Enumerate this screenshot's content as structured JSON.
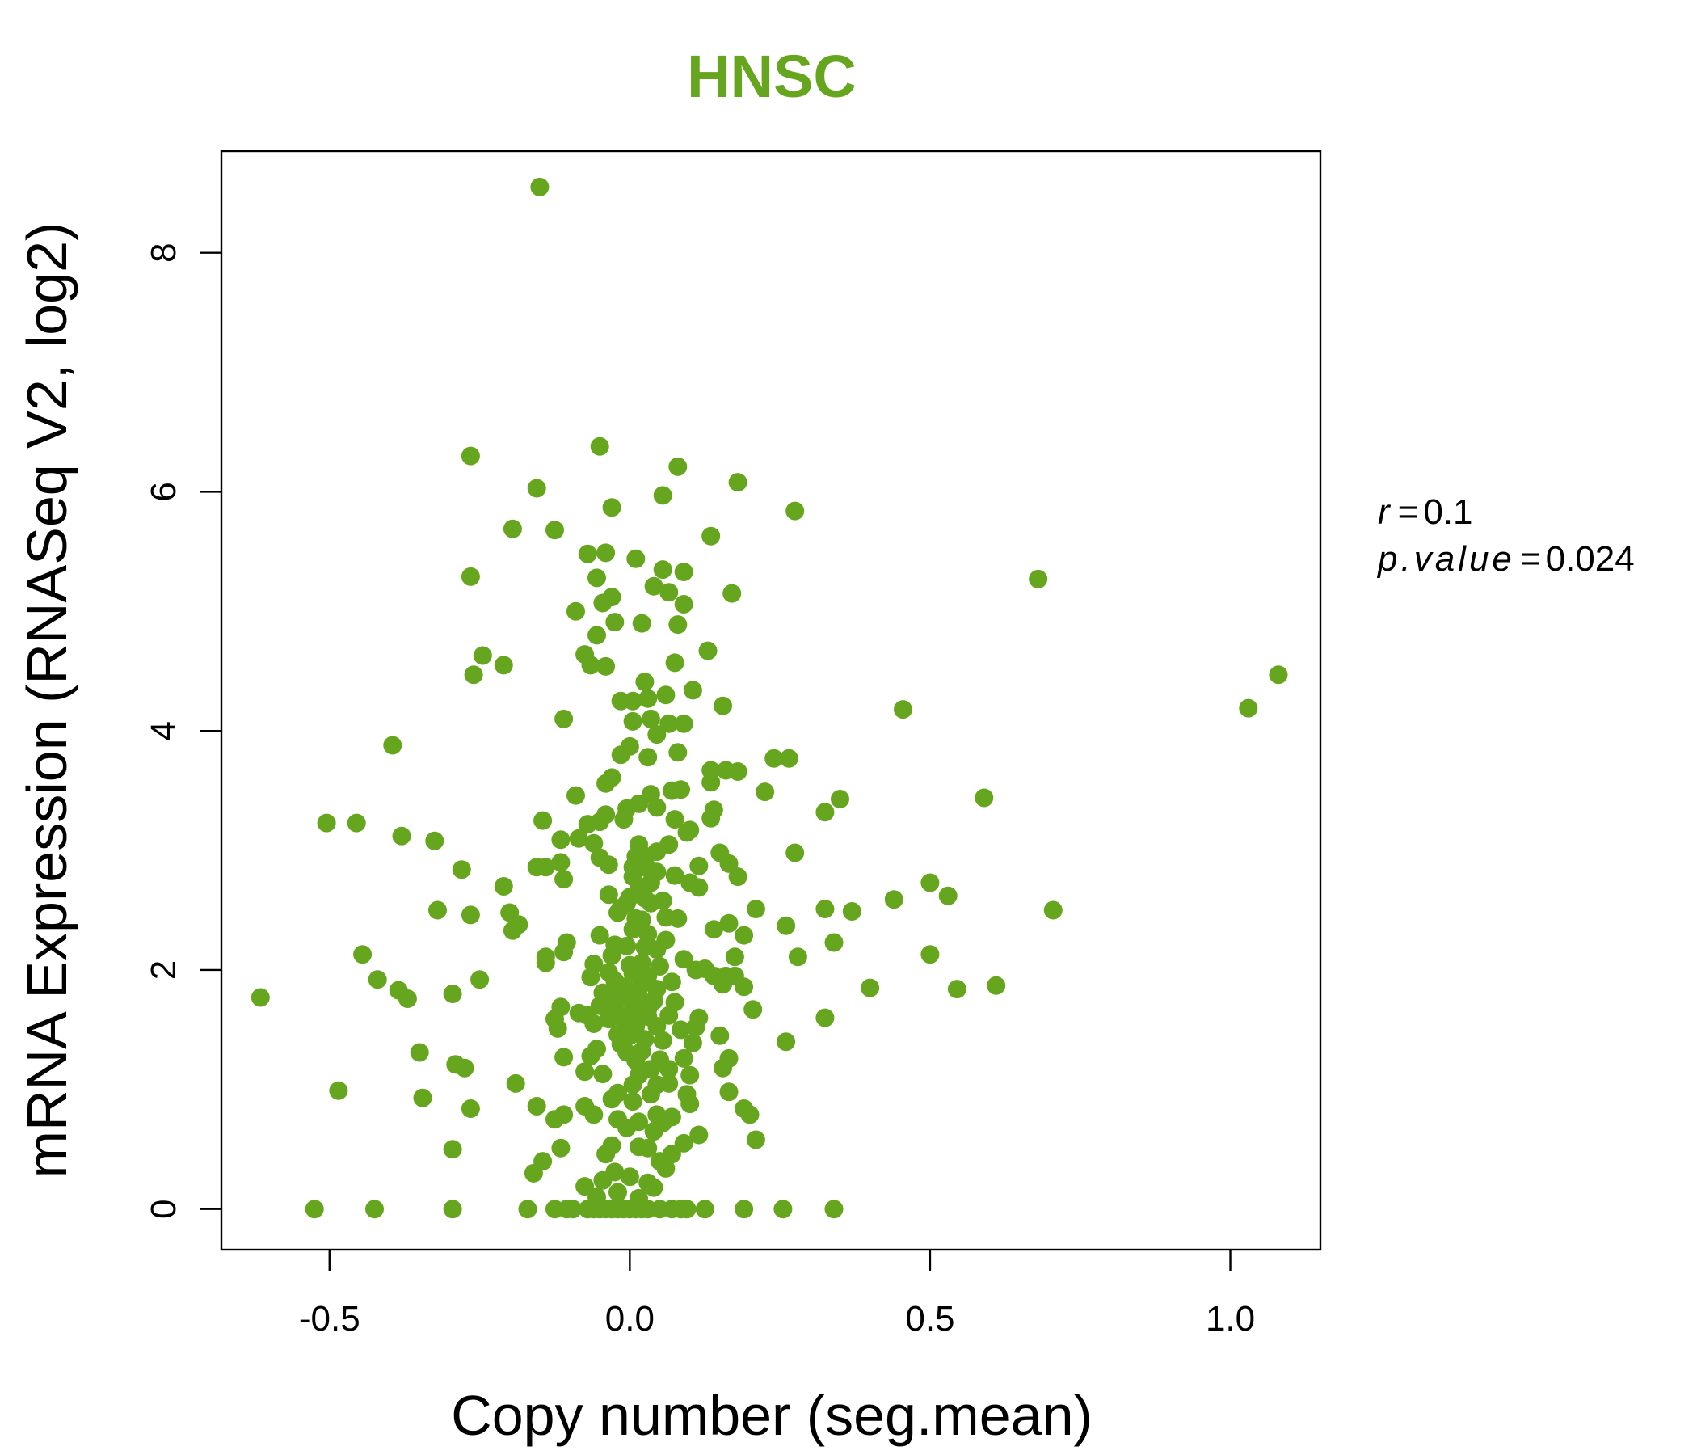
{
  "chart_data": {
    "type": "scatter",
    "title": "HNSC",
    "xlabel": "Copy number (seg.mean)",
    "ylabel": "mRNA Expression (RNASeq V2, log2)",
    "xlim": [
      -0.68,
      1.15
    ],
    "ylim": [
      -0.34,
      8.85
    ],
    "x_ticks": [
      -0.5,
      0.0,
      0.5,
      1.0
    ],
    "x_tick_labels": [
      "-0.5",
      "0.0",
      "0.5",
      "1.0"
    ],
    "y_ticks": [
      0,
      2,
      4,
      6,
      8
    ],
    "y_tick_labels": [
      "0",
      "2",
      "4",
      "6",
      "8"
    ],
    "grid": false,
    "color": "#66A61E",
    "annotation": {
      "r_label": "r",
      "r_value": "0.1",
      "p_label": "p.value",
      "p_value": "0.024"
    },
    "points": [
      {
        "x": -0.15,
        "y": 8.55
      },
      {
        "x": -0.265,
        "y": 6.3
      },
      {
        "x": -0.155,
        "y": 6.03
      },
      {
        "x": -0.05,
        "y": 6.38
      },
      {
        "x": -0.03,
        "y": 5.87
      },
      {
        "x": 0.08,
        "y": 6.21
      },
      {
        "x": 0.055,
        "y": 5.97
      },
      {
        "x": 0.18,
        "y": 6.08
      },
      {
        "x": 0.275,
        "y": 5.84
      },
      {
        "x": -0.195,
        "y": 5.69
      },
      {
        "x": -0.125,
        "y": 5.68
      },
      {
        "x": 0.135,
        "y": 5.63
      },
      {
        "x": -0.265,
        "y": 5.29
      },
      {
        "x": -0.07,
        "y": 5.48
      },
      {
        "x": -0.04,
        "y": 5.49
      },
      {
        "x": 0.01,
        "y": 5.44
      },
      {
        "x": 0.055,
        "y": 5.35
      },
      {
        "x": 0.09,
        "y": 5.33
      },
      {
        "x": -0.055,
        "y": 5.28
      },
      {
        "x": 0.04,
        "y": 5.21
      },
      {
        "x": 0.065,
        "y": 5.16
      },
      {
        "x": 0.17,
        "y": 5.15
      },
      {
        "x": 0.68,
        "y": 5.27
      },
      {
        "x": -0.03,
        "y": 5.12
      },
      {
        "x": -0.045,
        "y": 5.07
      },
      {
        "x": 0.09,
        "y": 5.06
      },
      {
        "x": -0.09,
        "y": 5.0
      },
      {
        "x": -0.025,
        "y": 4.91
      },
      {
        "x": 0.02,
        "y": 4.9
      },
      {
        "x": 0.08,
        "y": 4.89
      },
      {
        "x": -0.055,
        "y": 4.8
      },
      {
        "x": -0.245,
        "y": 4.63
      },
      {
        "x": -0.21,
        "y": 4.55
      },
      {
        "x": -0.26,
        "y": 4.47
      },
      {
        "x": -0.075,
        "y": 4.64
      },
      {
        "x": -0.065,
        "y": 4.55
      },
      {
        "x": -0.04,
        "y": 4.54
      },
      {
        "x": 0.075,
        "y": 4.57
      },
      {
        "x": 0.13,
        "y": 4.67
      },
      {
        "x": 0.025,
        "y": 4.41
      },
      {
        "x": 0.06,
        "y": 4.3
      },
      {
        "x": 0.105,
        "y": 4.34
      },
      {
        "x": -0.015,
        "y": 4.25
      },
      {
        "x": 0.005,
        "y": 4.25
      },
      {
        "x": 0.03,
        "y": 4.27
      },
      {
        "x": 0.155,
        "y": 4.21
      },
      {
        "x": 1.08,
        "y": 4.47
      },
      {
        "x": 1.03,
        "y": 4.19
      },
      {
        "x": 0.455,
        "y": 4.18
      },
      {
        "x": -0.11,
        "y": 4.1
      },
      {
        "x": 0.005,
        "y": 4.08
      },
      {
        "x": 0.035,
        "y": 4.1
      },
      {
        "x": 0.065,
        "y": 4.06
      },
      {
        "x": 0.09,
        "y": 4.06
      },
      {
        "x": 0.045,
        "y": 3.97
      },
      {
        "x": -0.395,
        "y": 3.88
      },
      {
        "x": 0.0,
        "y": 3.87
      },
      {
        "x": 0.08,
        "y": 3.82
      },
      {
        "x": -0.015,
        "y": 3.8
      },
      {
        "x": 0.03,
        "y": 3.78
      },
      {
        "x": 0.24,
        "y": 3.77
      },
      {
        "x": 0.265,
        "y": 3.77
      },
      {
        "x": 0.135,
        "y": 3.67
      },
      {
        "x": 0.16,
        "y": 3.67
      },
      {
        "x": 0.18,
        "y": 3.66
      },
      {
        "x": 0.135,
        "y": 3.57
      },
      {
        "x": -0.04,
        "y": 3.56
      },
      {
        "x": -0.03,
        "y": 3.61
      },
      {
        "x": 0.07,
        "y": 3.5
      },
      {
        "x": 0.085,
        "y": 3.51
      },
      {
        "x": 0.225,
        "y": 3.49
      },
      {
        "x": -0.09,
        "y": 3.46
      },
      {
        "x": 0.035,
        "y": 3.47
      },
      {
        "x": 0.015,
        "y": 3.39
      },
      {
        "x": 0.045,
        "y": 3.36
      },
      {
        "x": -0.005,
        "y": 3.35
      },
      {
        "x": 0.59,
        "y": 3.44
      },
      {
        "x": 0.35,
        "y": 3.43
      },
      {
        "x": 0.325,
        "y": 3.32
      },
      {
        "x": 0.14,
        "y": 3.34
      },
      {
        "x": -0.04,
        "y": 3.3
      },
      {
        "x": -0.01,
        "y": 3.26
      },
      {
        "x": -0.505,
        "y": 3.23
      },
      {
        "x": -0.455,
        "y": 3.23
      },
      {
        "x": -0.145,
        "y": 3.25
      },
      {
        "x": -0.07,
        "y": 3.22
      },
      {
        "x": -0.05,
        "y": 3.24
      },
      {
        "x": 0.075,
        "y": 3.26
      },
      {
        "x": 0.135,
        "y": 3.27
      },
      {
        "x": -0.38,
        "y": 3.12
      },
      {
        "x": -0.325,
        "y": 3.08
      },
      {
        "x": -0.115,
        "y": 3.09
      },
      {
        "x": -0.085,
        "y": 3.1
      },
      {
        "x": 0.095,
        "y": 3.15
      },
      {
        "x": 0.1,
        "y": 3.17
      },
      {
        "x": -0.06,
        "y": 3.06
      },
      {
        "x": 0.015,
        "y": 3.05
      },
      {
        "x": 0.065,
        "y": 3.05
      },
      {
        "x": 0.275,
        "y": 2.98
      },
      {
        "x": 0.15,
        "y": 2.98
      },
      {
        "x": -0.05,
        "y": 2.94
      },
      {
        "x": 0.02,
        "y": 2.97
      },
      {
        "x": 0.045,
        "y": 2.99
      },
      {
        "x": -0.115,
        "y": 2.9
      },
      {
        "x": -0.155,
        "y": 2.86
      },
      {
        "x": -0.14,
        "y": 2.86
      },
      {
        "x": -0.035,
        "y": 2.88
      },
      {
        "x": 0.115,
        "y": 2.87
      },
      {
        "x": 0.165,
        "y": 2.89
      },
      {
        "x": 0.005,
        "y": 2.86
      },
      {
        "x": 0.03,
        "y": 2.85
      },
      {
        "x": -0.28,
        "y": 2.84
      },
      {
        "x": -0.11,
        "y": 2.76
      },
      {
        "x": 0.18,
        "y": 2.78
      },
      {
        "x": 0.075,
        "y": 2.79
      },
      {
        "x": 0.1,
        "y": 2.73
      },
      {
        "x": -0.21,
        "y": 2.7
      },
      {
        "x": 0.5,
        "y": 2.73
      },
      {
        "x": 0.115,
        "y": 2.69
      },
      {
        "x": 0.53,
        "y": 2.62
      },
      {
        "x": 0.44,
        "y": 2.59
      },
      {
        "x": -0.035,
        "y": 2.63
      },
      {
        "x": 0.0,
        "y": 2.61
      },
      {
        "x": 0.025,
        "y": 2.6
      },
      {
        "x": 0.055,
        "y": 2.58
      },
      {
        "x": 0.035,
        "y": 2.56
      },
      {
        "x": 0.705,
        "y": 2.5
      },
      {
        "x": -0.32,
        "y": 2.5
      },
      {
        "x": -0.265,
        "y": 2.46
      },
      {
        "x": -0.2,
        "y": 2.48
      },
      {
        "x": 0.21,
        "y": 2.51
      },
      {
        "x": 0.325,
        "y": 2.51
      },
      {
        "x": 0.37,
        "y": 2.49
      },
      {
        "x": -0.02,
        "y": 2.48
      },
      {
        "x": 0.01,
        "y": 2.43
      },
      {
        "x": 0.06,
        "y": 2.44
      },
      {
        "x": 0.08,
        "y": 2.43
      },
      {
        "x": -0.185,
        "y": 2.38
      },
      {
        "x": -0.195,
        "y": 2.33
      },
      {
        "x": 0.165,
        "y": 2.39
      },
      {
        "x": 0.14,
        "y": 2.34
      },
      {
        "x": 0.26,
        "y": 2.37
      },
      {
        "x": 0.005,
        "y": 2.34
      },
      {
        "x": 0.03,
        "y": 2.3
      },
      {
        "x": -0.05,
        "y": 2.29
      },
      {
        "x": 0.19,
        "y": 2.29
      },
      {
        "x": 0.06,
        "y": 2.25
      },
      {
        "x": -0.105,
        "y": 2.23
      },
      {
        "x": 0.34,
        "y": 2.23
      },
      {
        "x": -0.025,
        "y": 2.21
      },
      {
        "x": -0.005,
        "y": 2.2
      },
      {
        "x": 0.045,
        "y": 2.17
      },
      {
        "x": -0.11,
        "y": 2.15
      },
      {
        "x": -0.445,
        "y": 2.13
      },
      {
        "x": -0.14,
        "y": 2.11
      },
      {
        "x": 0.5,
        "y": 2.13
      },
      {
        "x": 0.28,
        "y": 2.11
      },
      {
        "x": 0.175,
        "y": 2.11
      },
      {
        "x": 0.09,
        "y": 2.09
      },
      {
        "x": -0.14,
        "y": 2.06
      },
      {
        "x": -0.06,
        "y": 2.05
      },
      {
        "x": 0.02,
        "y": 2.06
      },
      {
        "x": 0.05,
        "y": 2.03
      },
      {
        "x": 0.11,
        "y": 2.0
      },
      {
        "x": 0.125,
        "y": 2.01
      },
      {
        "x": -0.035,
        "y": 1.98
      },
      {
        "x": 0.005,
        "y": 1.97
      },
      {
        "x": -0.065,
        "y": 1.94
      },
      {
        "x": 0.03,
        "y": 1.95
      },
      {
        "x": 0.14,
        "y": 1.95
      },
      {
        "x": 0.16,
        "y": 1.95
      },
      {
        "x": 0.175,
        "y": 1.95
      },
      {
        "x": -0.42,
        "y": 1.92
      },
      {
        "x": -0.25,
        "y": 1.92
      },
      {
        "x": 0.07,
        "y": 1.9
      },
      {
        "x": 0.155,
        "y": 1.88
      },
      {
        "x": 0.19,
        "y": 1.86
      },
      {
        "x": 0.4,
        "y": 1.85
      },
      {
        "x": 0.61,
        "y": 1.87
      },
      {
        "x": 0.545,
        "y": 1.84
      },
      {
        "x": -0.385,
        "y": 1.83
      },
      {
        "x": -0.37,
        "y": 1.76
      },
      {
        "x": -0.295,
        "y": 1.8
      },
      {
        "x": -0.615,
        "y": 1.77
      },
      {
        "x": -0.045,
        "y": 1.81
      },
      {
        "x": -0.02,
        "y": 1.78
      },
      {
        "x": 0.0,
        "y": 1.76
      },
      {
        "x": 0.015,
        "y": 1.78
      },
      {
        "x": 0.04,
        "y": 1.74
      },
      {
        "x": -0.025,
        "y": 1.71
      },
      {
        "x": -0.05,
        "y": 1.7
      },
      {
        "x": 0.075,
        "y": 1.73
      },
      {
        "x": -0.115,
        "y": 1.69
      },
      {
        "x": 0.005,
        "y": 1.67
      },
      {
        "x": 0.03,
        "y": 1.67
      },
      {
        "x": 0.205,
        "y": 1.67
      },
      {
        "x": -0.085,
        "y": 1.64
      },
      {
        "x": -0.07,
        "y": 1.62
      },
      {
        "x": 0.0,
        "y": 1.63
      },
      {
        "x": 0.065,
        "y": 1.62
      },
      {
        "x": 0.325,
        "y": 1.6
      },
      {
        "x": -0.125,
        "y": 1.59
      },
      {
        "x": -0.035,
        "y": 1.59
      },
      {
        "x": 0.115,
        "y": 1.6
      },
      {
        "x": -0.12,
        "y": 1.51
      },
      {
        "x": -0.06,
        "y": 1.55
      },
      {
        "x": 0.01,
        "y": 1.53
      },
      {
        "x": 0.045,
        "y": 1.53
      },
      {
        "x": 0.085,
        "y": 1.5
      },
      {
        "x": 0.11,
        "y": 1.52
      },
      {
        "x": 0.15,
        "y": 1.45
      },
      {
        "x": -0.02,
        "y": 1.46
      },
      {
        "x": 0.025,
        "y": 1.42
      },
      {
        "x": 0.055,
        "y": 1.41
      },
      {
        "x": 0.105,
        "y": 1.39
      },
      {
        "x": 0.26,
        "y": 1.4
      },
      {
        "x": -0.055,
        "y": 1.34
      },
      {
        "x": -0.005,
        "y": 1.31
      },
      {
        "x": -0.35,
        "y": 1.31
      },
      {
        "x": -0.065,
        "y": 1.28
      },
      {
        "x": -0.11,
        "y": 1.27
      },
      {
        "x": 0.01,
        "y": 1.24
      },
      {
        "x": 0.05,
        "y": 1.25
      },
      {
        "x": 0.09,
        "y": 1.26
      },
      {
        "x": 0.165,
        "y": 1.26
      },
      {
        "x": -0.29,
        "y": 1.21
      },
      {
        "x": -0.275,
        "y": 1.18
      },
      {
        "x": 0.035,
        "y": 1.17
      },
      {
        "x": 0.065,
        "y": 1.17
      },
      {
        "x": 0.155,
        "y": 1.18
      },
      {
        "x": -0.045,
        "y": 1.13
      },
      {
        "x": -0.075,
        "y": 1.15
      },
      {
        "x": 0.015,
        "y": 1.12
      },
      {
        "x": 0.1,
        "y": 1.12
      },
      {
        "x": -0.19,
        "y": 1.05
      },
      {
        "x": 0.005,
        "y": 1.04
      },
      {
        "x": 0.045,
        "y": 1.04
      },
      {
        "x": 0.065,
        "y": 1.05
      },
      {
        "x": -0.485,
        "y": 0.99
      },
      {
        "x": 0.165,
        "y": 0.98
      },
      {
        "x": -0.02,
        "y": 0.97
      },
      {
        "x": 0.035,
        "y": 0.96
      },
      {
        "x": 0.095,
        "y": 0.96
      },
      {
        "x": -0.345,
        "y": 0.93
      },
      {
        "x": -0.03,
        "y": 0.92
      },
      {
        "x": 0.005,
        "y": 0.9
      },
      {
        "x": 0.1,
        "y": 0.88
      },
      {
        "x": -0.265,
        "y": 0.84
      },
      {
        "x": -0.155,
        "y": 0.86
      },
      {
        "x": -0.075,
        "y": 0.86
      },
      {
        "x": 0.19,
        "y": 0.84
      },
      {
        "x": 0.2,
        "y": 0.79
      },
      {
        "x": -0.11,
        "y": 0.79
      },
      {
        "x": -0.125,
        "y": 0.75
      },
      {
        "x": -0.06,
        "y": 0.79
      },
      {
        "x": 0.045,
        "y": 0.79
      },
      {
        "x": 0.07,
        "y": 0.77
      },
      {
        "x": -0.02,
        "y": 0.75
      },
      {
        "x": 0.015,
        "y": 0.73
      },
      {
        "x": 0.055,
        "y": 0.72
      },
      {
        "x": -0.005,
        "y": 0.68
      },
      {
        "x": 0.04,
        "y": 0.65
      },
      {
        "x": 0.115,
        "y": 0.62
      },
      {
        "x": 0.21,
        "y": 0.58
      },
      {
        "x": 0.09,
        "y": 0.55
      },
      {
        "x": -0.03,
        "y": 0.53
      },
      {
        "x": 0.015,
        "y": 0.52
      },
      {
        "x": 0.03,
        "y": 0.51
      },
      {
        "x": -0.295,
        "y": 0.5
      },
      {
        "x": -0.115,
        "y": 0.51
      },
      {
        "x": -0.04,
        "y": 0.46
      },
      {
        "x": 0.07,
        "y": 0.46
      },
      {
        "x": -0.145,
        "y": 0.4
      },
      {
        "x": 0.05,
        "y": 0.4
      },
      {
        "x": 0.06,
        "y": 0.34
      },
      {
        "x": -0.025,
        "y": 0.31
      },
      {
        "x": -0.16,
        "y": 0.3
      },
      {
        "x": 0.0,
        "y": 0.27
      },
      {
        "x": -0.045,
        "y": 0.24
      },
      {
        "x": 0.03,
        "y": 0.22
      },
      {
        "x": -0.075,
        "y": 0.19
      },
      {
        "x": 0.04,
        "y": 0.18
      },
      {
        "x": -0.02,
        "y": 0.14
      },
      {
        "x": -0.055,
        "y": 0.1
      },
      {
        "x": 0.015,
        "y": 0.09
      },
      {
        "x": -0.525,
        "y": 0.0
      },
      {
        "x": -0.425,
        "y": 0.0
      },
      {
        "x": -0.295,
        "y": 0.0
      },
      {
        "x": -0.17,
        "y": 0.0
      },
      {
        "x": -0.125,
        "y": 0.0
      },
      {
        "x": -0.105,
        "y": 0.0
      },
      {
        "x": -0.095,
        "y": 0.0
      },
      {
        "x": -0.07,
        "y": 0.0
      },
      {
        "x": -0.06,
        "y": 0.0
      },
      {
        "x": -0.05,
        "y": 0.0
      },
      {
        "x": -0.04,
        "y": 0.0
      },
      {
        "x": -0.03,
        "y": 0.0
      },
      {
        "x": -0.02,
        "y": 0.0
      },
      {
        "x": -0.01,
        "y": 0.0
      },
      {
        "x": 0.0,
        "y": 0.0
      },
      {
        "x": 0.01,
        "y": 0.0
      },
      {
        "x": 0.02,
        "y": 0.0
      },
      {
        "x": 0.03,
        "y": 0.0
      },
      {
        "x": 0.05,
        "y": 0.0
      },
      {
        "x": 0.07,
        "y": 0.0
      },
      {
        "x": 0.085,
        "y": 0.0
      },
      {
        "x": 0.095,
        "y": 0.0
      },
      {
        "x": 0.125,
        "y": 0.0
      },
      {
        "x": 0.19,
        "y": 0.0
      },
      {
        "x": 0.255,
        "y": 0.0
      },
      {
        "x": 0.34,
        "y": 0.0
      },
      {
        "x": -0.01,
        "y": 1.86
      },
      {
        "x": 0.02,
        "y": 1.88
      },
      {
        "x": 0.045,
        "y": 1.84
      },
      {
        "x": -0.03,
        "y": 2.12
      },
      {
        "x": 0.0,
        "y": 2.04
      },
      {
        "x": 0.025,
        "y": 2.19
      },
      {
        "x": 0.015,
        "y": 2.7
      },
      {
        "x": 0.035,
        "y": 2.73
      },
      {
        "x": 0.005,
        "y": 2.78
      },
      {
        "x": 0.045,
        "y": 2.82
      },
      {
        "x": 0.025,
        "y": 2.92
      },
      {
        "x": 0.01,
        "y": 2.95
      },
      {
        "x": -0.015,
        "y": 2.52
      },
      {
        "x": -0.005,
        "y": 2.56
      },
      {
        "x": 0.02,
        "y": 2.42
      },
      {
        "x": -0.025,
        "y": 1.91
      },
      {
        "x": 0.01,
        "y": 1.82
      },
      {
        "x": -0.035,
        "y": 1.74
      },
      {
        "x": 0.03,
        "y": 1.61
      },
      {
        "x": -0.01,
        "y": 1.58
      },
      {
        "x": 0.0,
        "y": 1.45
      },
      {
        "x": -0.015,
        "y": 1.38
      },
      {
        "x": 0.02,
        "y": 1.32
      }
    ]
  }
}
